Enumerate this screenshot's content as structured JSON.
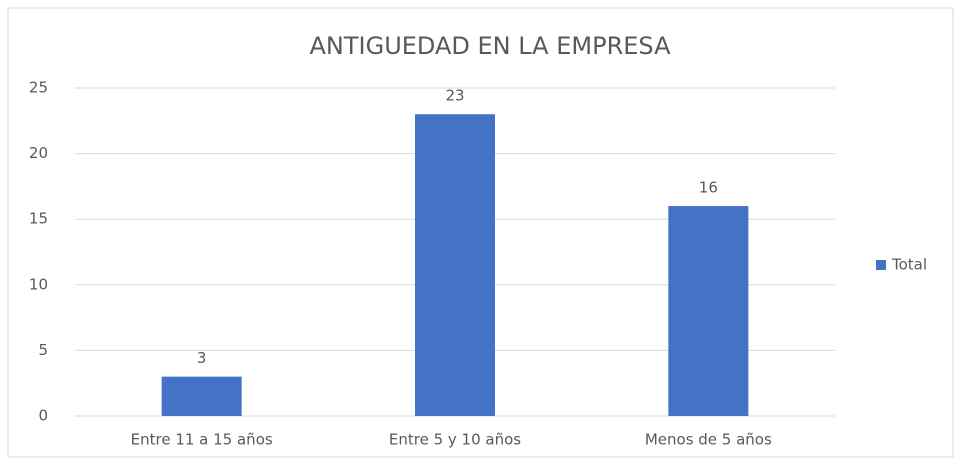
{
  "chart_data": {
    "type": "bar",
    "title": "ANTIGUEDAD EN LA EMPRESA",
    "categories": [
      "Entre 11 a 15 años",
      "Entre 5 y 10 años",
      "Menos de 5 años"
    ],
    "series": [
      {
        "name": "Total",
        "color": "#4472c4",
        "values": [
          3,
          23,
          16
        ]
      }
    ],
    "ylim": [
      0,
      25
    ],
    "yticks": [
      0,
      5,
      10,
      15,
      20,
      25
    ],
    "grid": true,
    "legend": "right"
  }
}
